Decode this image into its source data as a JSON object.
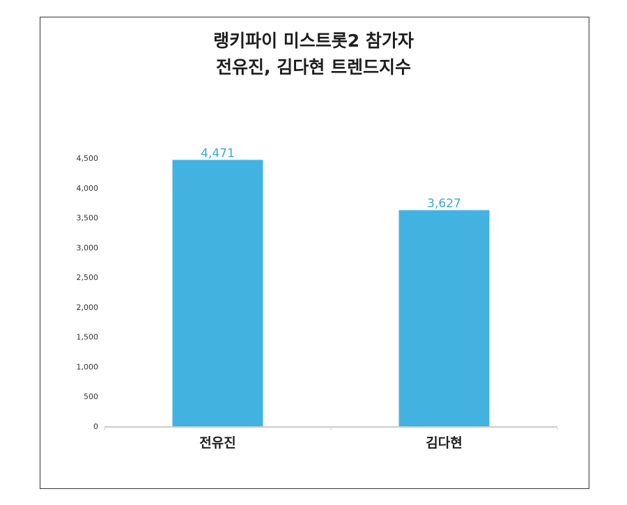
{
  "chart_data": {
    "type": "bar",
    "title_lines": [
      "랭키파이 미스트롯2 참가자",
      "전유진, 김다현 트렌드지수"
    ],
    "categories": [
      "전유진",
      "김다현"
    ],
    "values": [
      4471,
      3627
    ],
    "value_labels": [
      "4,471",
      "3,627"
    ],
    "y_ticks": [
      "0",
      "500",
      "1,000",
      "1,500",
      "2,000",
      "2,500",
      "3,000",
      "3,500",
      "4,000",
      "4,500"
    ],
    "ylim": [
      0,
      4500
    ],
    "grid": false,
    "bar_color": "#42b3e1",
    "label_color": "#3aa7d6"
  }
}
